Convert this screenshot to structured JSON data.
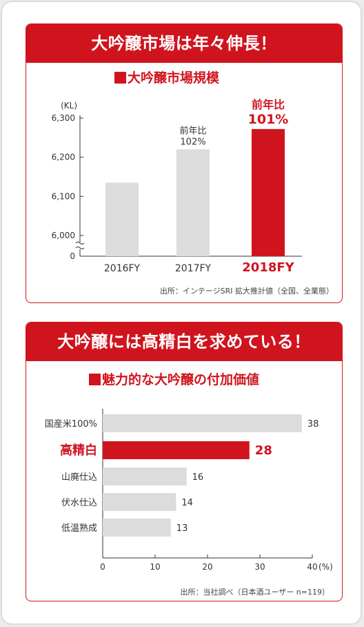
{
  "colors": {
    "accent": "#d0141e",
    "bar_gray": "#dcdcdc",
    "axis": "#333333"
  },
  "panel1": {
    "header": "大吟醸市場は年々伸長！",
    "chart_title": "大吟醸市場規模",
    "source": "出所：インテージSRI 拡大推計値（全国、全業態）"
  },
  "panel2": {
    "header": "大吟醸には高精白を求めている！",
    "chart_title": "魅力的な大吟醸の付加価値",
    "source": "出所：当社調べ（日本酒ユーザー n=119）"
  },
  "chart_data": [
    {
      "type": "bar",
      "title": "大吟醸市場規模",
      "unit": "(KL)",
      "categories": [
        "2016FY",
        "2017FY",
        "2018FY"
      ],
      "values": [
        6135,
        6220,
        6272
      ],
      "highlight_index": 2,
      "annotations": [
        {
          "category": "2017FY",
          "line1": "前年比",
          "line2": "102%"
        },
        {
          "category": "2018FY",
          "line1": "前年比",
          "line2": "101%"
        }
      ],
      "yticks": [
        6000,
        6100,
        6200,
        6300
      ],
      "ytick_labels": [
        "6,000",
        "6,100",
        "6,200",
        "6,300"
      ],
      "ylim": [
        6000,
        6300
      ],
      "axis_break": true,
      "baseline_label": "0",
      "grid": false
    },
    {
      "type": "bar",
      "orientation": "horizontal",
      "title": "魅力的な大吟醸の付加価値",
      "categories": [
        "国産米100%",
        "高精白",
        "山廃仕込",
        "伏水仕込",
        "低温熟成"
      ],
      "values": [
        38,
        28,
        16,
        14,
        13
      ],
      "highlight_index": 1,
      "xticks": [
        0,
        10,
        20,
        30,
        40
      ],
      "xtick_labels": [
        "0",
        "10",
        "20",
        "30",
        "40"
      ],
      "xunit": "(%)",
      "xlim": [
        0,
        40
      ],
      "grid": false
    }
  ]
}
